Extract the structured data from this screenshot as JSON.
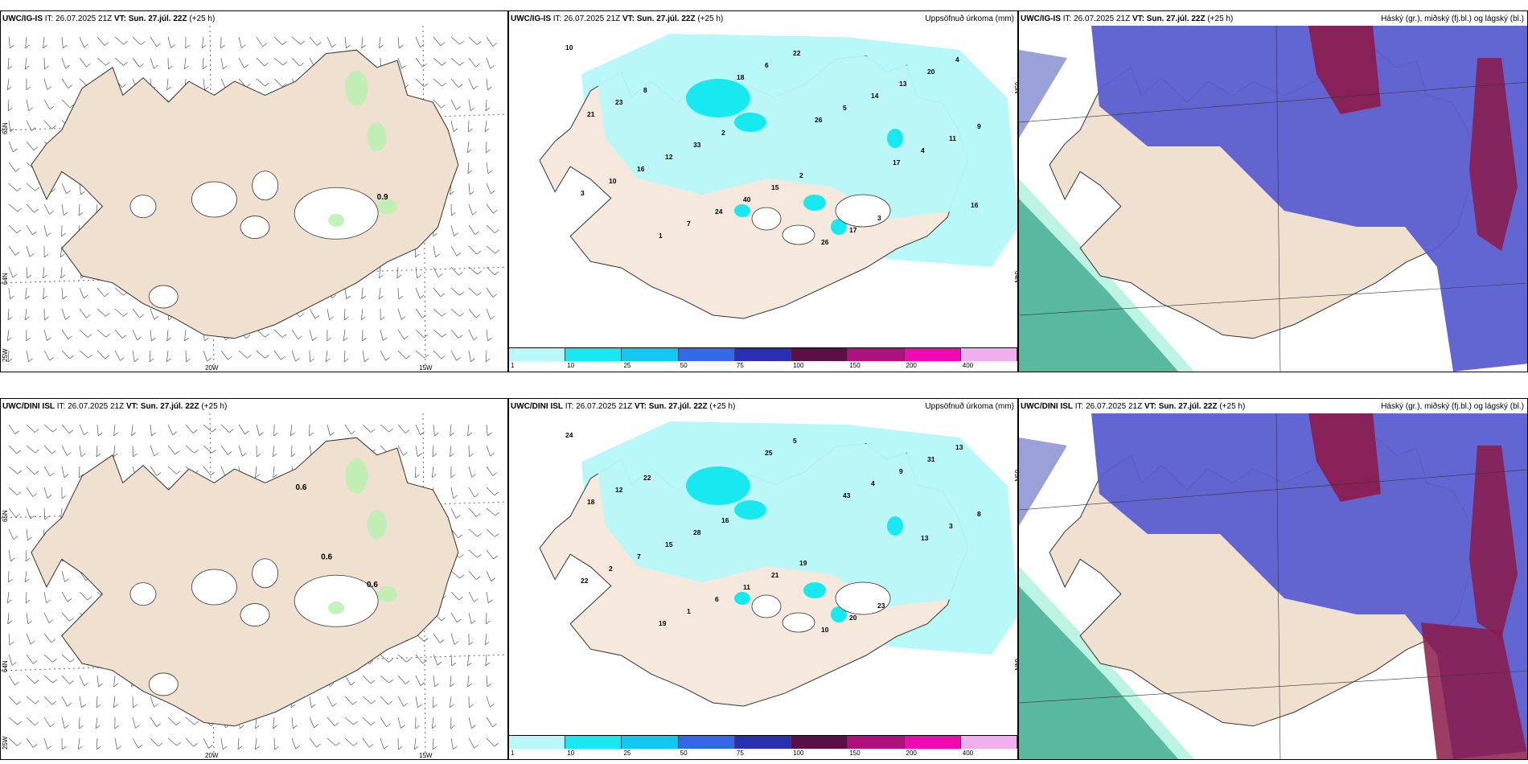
{
  "panels": [
    {
      "model": "UWC/IG-IS",
      "it": "IT: 26.07.2025 21Z",
      "vt_label": "VT:",
      "vt": "Sun. 27.júl. 22Z",
      "lead": "(+25 h)",
      "right": "",
      "type": "wind",
      "wind_labels": [
        "0.9"
      ],
      "axis_labels": {
        "lat_top": "65N",
        "lat_mid": "64N",
        "lat_bot": "25W",
        "lon_left": "20W",
        "lon_right": "15W"
      }
    },
    {
      "model": "UWC/IG-IS",
      "it": "IT: 26.07.2025 21Z",
      "vt_label": "VT:",
      "vt": "Sun. 27.júl. 22Z",
      "lead": "(+25 h)",
      "right": "Uppsöfnuð úrkoma (mm)",
      "type": "precip",
      "axis_labels": {
        "lat_top": "65N",
        "lat_mid": "64N"
      },
      "values": [
        "10",
        "8",
        "2",
        "2",
        "3",
        "4",
        "23",
        "33",
        "15",
        "17",
        "20",
        "21",
        "12",
        "40",
        "26",
        "13",
        "9",
        "16",
        "24",
        "22",
        "14",
        "11",
        "10",
        "7",
        "6",
        "5",
        "4",
        "3",
        "1",
        "18",
        "26",
        "17",
        "16"
      ]
    },
    {
      "model": "UWC/IG-IS",
      "it": "IT: 26.07.2025 21Z",
      "vt_label": "VT:",
      "vt": "Sun. 27.júl. 22Z",
      "lead": "(+25 h)",
      "right": "Háský (gr.), miðský (fj.bl.) og lágský (bl.)",
      "type": "cloud"
    },
    {
      "model": "UWC/DINI ISL",
      "it": "IT: 26.07.2025 21Z",
      "vt_label": "VT:",
      "vt": "Sun. 27.júl. 22Z",
      "lead": "(+25 h)",
      "right": "",
      "type": "wind",
      "wind_labels": [
        "0.6",
        "0.6",
        "0.6"
      ],
      "axis_labels": {
        "lat_top": "65N",
        "lat_mid": "64N",
        "lat_bot": "25W",
        "lon_left": "20W",
        "lon_right": "15W"
      }
    },
    {
      "model": "UWC/DINI ISL",
      "it": "IT: 26.07.2025 21Z",
      "vt_label": "VT:",
      "vt": "Sun. 27.júl. 22Z",
      "lead": "(+25 h)",
      "right": "Uppsöfnuð úrkoma (mm)",
      "type": "precip",
      "axis_labels": {
        "lat_top": "65N",
        "lat_mid": "64N"
      },
      "values": [
        "24",
        "22",
        "16",
        "19",
        "23",
        "13",
        "12",
        "28",
        "21",
        "20",
        "31",
        "18",
        "15",
        "11",
        "10",
        "9",
        "8",
        "7",
        "6",
        "5",
        "4",
        "3",
        "2",
        "1",
        "25",
        "43",
        "13",
        "22",
        "19"
      ]
    },
    {
      "model": "UWC/DINI ISL",
      "it": "IT: 26.07.2025 21Z",
      "vt_label": "VT:",
      "vt": "Sun. 27.júl. 22Z",
      "lead": "(+25 h)",
      "right": "Háský (gr.), miðský (fj.bl.) og lágský (bl.)",
      "type": "cloud"
    }
  ],
  "colorbar": {
    "labels": [
      "1",
      "10",
      "25",
      "50",
      "75",
      "100",
      "150",
      "200",
      "400"
    ],
    "colors": [
      "#b8f8f8",
      "#18e8f0",
      "#10c8f0",
      "#3468e8",
      "#2830b0",
      "#5a1046",
      "#b0107c",
      "#f008b0",
      "#f0b0f0"
    ]
  },
  "colors": {
    "land": "#efe0cf",
    "land_light": "#f5e8dc",
    "snow": "#ffffff",
    "precip_light": "#b8f8f8",
    "precip_mid": "#18e8f0",
    "cloud_low": "#5a5ed0",
    "cloud_high": "#8c1a4a",
    "cloud_mid": "#58b8a0",
    "wind_green": "#b8f0b0"
  }
}
